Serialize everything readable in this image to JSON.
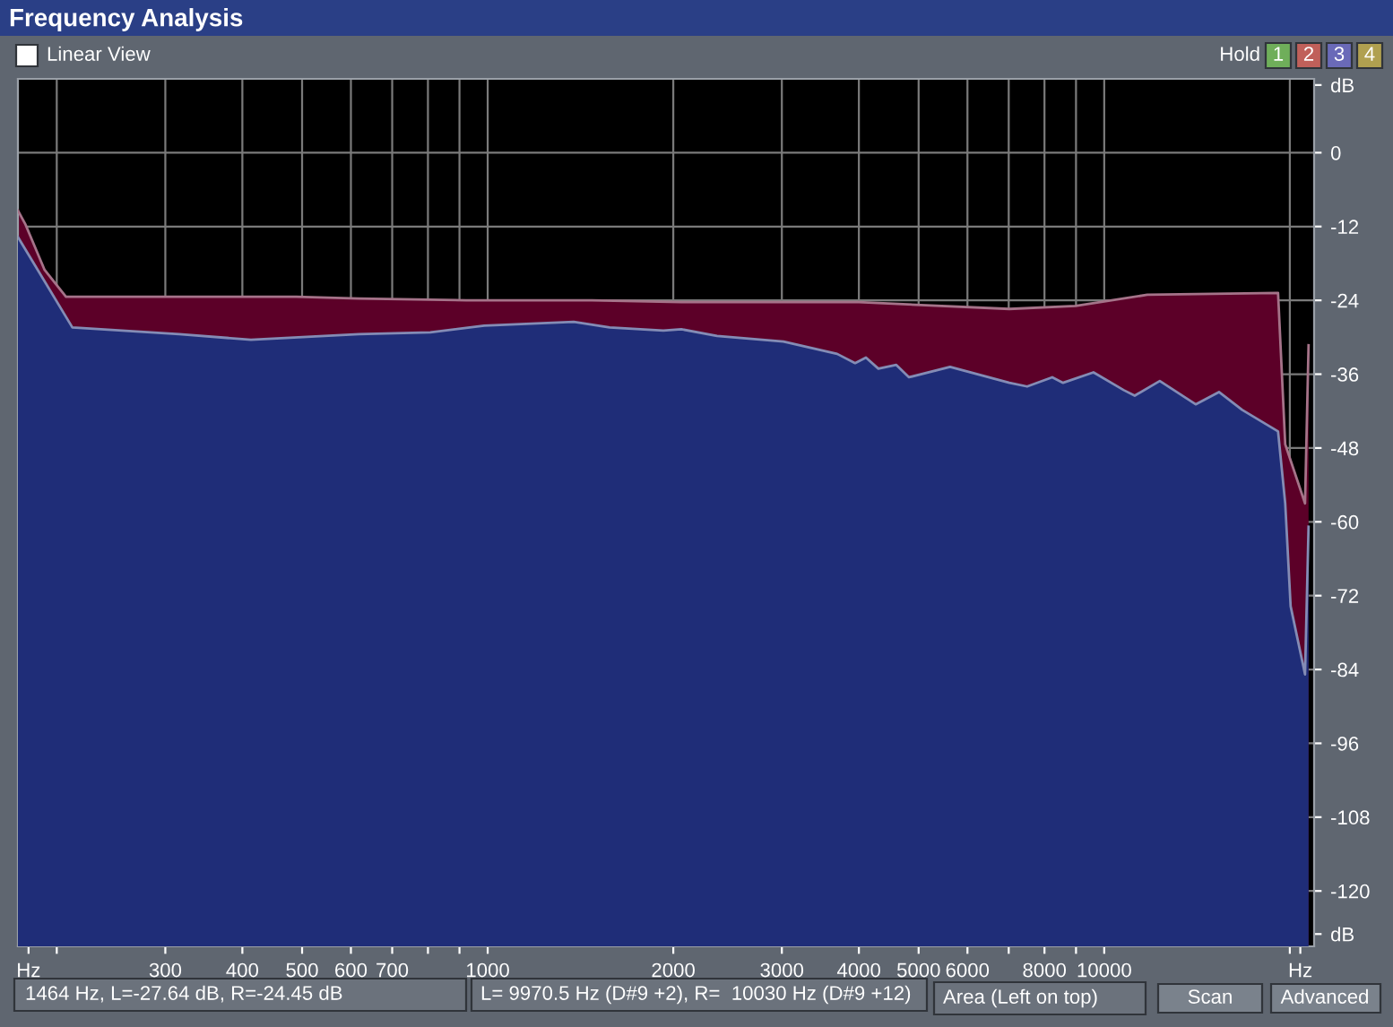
{
  "chart_data": {
    "type": "area",
    "title": "Frequency Analysis",
    "xlim": [
      173,
      21900
    ],
    "log": "x",
    "ylim": [
      -129,
      12
    ],
    "xticks": [
      {
        "value": 180,
        "label": "Hz"
      },
      {
        "value": 200,
        "label": null
      },
      300,
      400,
      500,
      600,
      700,
      {
        "value": 800,
        "label": null
      },
      {
        "value": 900,
        "label": null
      },
      1000,
      2000,
      3000,
      4000,
      5000,
      6000,
      {
        "value": 7000,
        "label": null
      },
      8000,
      {
        "value": 9000,
        "label": null
      },
      10000,
      {
        "value": 20000,
        "label": null
      },
      {
        "value": 20800,
        "label": "Hz"
      }
    ],
    "yticks": [
      {
        "value": 11,
        "label": "dB"
      },
      0,
      -12,
      -24,
      -36,
      -48,
      -60,
      -72,
      -84,
      -96,
      -108,
      -120,
      {
        "value": -127,
        "label": "dB"
      }
    ],
    "grid": true,
    "series": [
      {
        "color": "#5c0028",
        "x": [
          173,
          178,
          191,
          207,
          316,
          489,
          618,
          923,
          1474,
          2061,
          4000,
          7016,
          8985,
          11745,
          19140,
          19660,
          21170,
          21450
        ],
        "values": [
          -9.4,
          -11.7,
          -19,
          -23.4,
          -23.4,
          -23.4,
          -23.7,
          -24,
          -24,
          -24.3,
          -24.3,
          -25.4,
          -24.9,
          -23.1,
          -22.8,
          -47.4,
          -57,
          -31.3
        ]
      },
      {
        "color": "#1f2d78",
        "x": [
          173,
          212,
          316,
          413,
          618,
          807,
          987,
          1379,
          1577,
          1927,
          2061,
          2355,
          3018,
          3688,
          3944,
          4107,
          4302,
          4600,
          4823,
          5623,
          7016,
          7499,
          8236,
          8575,
          9607,
          10760,
          11206,
          12306,
          14071,
          15350,
          16740,
          19140,
          19660,
          20060,
          21170,
          21450
        ],
        "values": [
          -13.7,
          -28.4,
          -29.5,
          -30.4,
          -29.5,
          -29.2,
          -28.1,
          -27.5,
          -28.4,
          -28.9,
          -28.7,
          -29.8,
          -30.7,
          -32.7,
          -34.2,
          -33.3,
          -35.1,
          -34.5,
          -36.5,
          -34.8,
          -37.4,
          -38,
          -36.5,
          -37.4,
          -35.7,
          -38.6,
          -39.5,
          -37.1,
          -40.9,
          -38.9,
          -41.8,
          -45.3,
          -57,
          -73.7,
          -84.8,
          -60.8
        ]
      }
    ],
    "annotations": [
      "Linear View",
      "Hold",
      "1",
      "2",
      "3",
      "4",
      "1464 Hz, L=-27.64 dB, R=-24.45 dB",
      "L= 9970.5 Hz (D#9 +2), R=  10030 Hz (D#9 +12)",
      "Area (Left on top)",
      "Scan",
      "Advanced"
    ]
  }
}
